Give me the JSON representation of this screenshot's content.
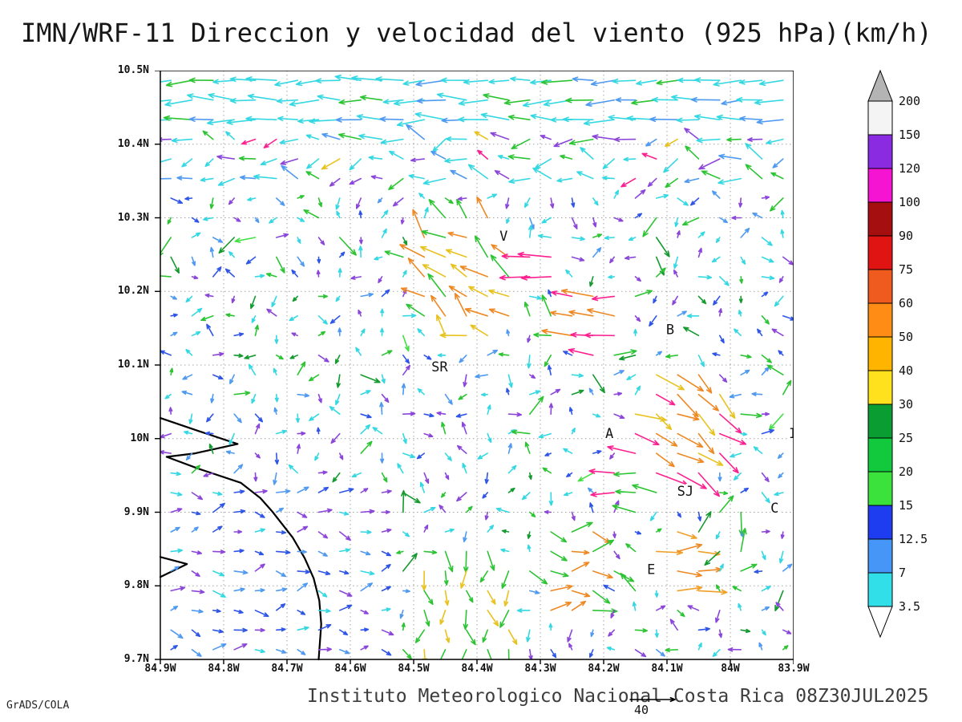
{
  "title": "IMN/WRF-11 Direccion y velocidad del viento (925 hPa)(km/h)",
  "footer": {
    "caption": "Instituto Meteorologico Nacional Costa Rica 08Z30JUL2025",
    "credit": "GrADS/COLA"
  },
  "chart_data": {
    "type": "vector-field-map",
    "title": "IMN/WRF-11 Direccion y velocidad del viento (925 hPa)(km/h)",
    "units": "km/h",
    "x_axis": {
      "ticks": [
        "84.9W",
        "84.8W",
        "84.7W",
        "84.6W",
        "84.5W",
        "84.4W",
        "84.3W",
        "84.2W",
        "84.1W",
        "84W",
        "83.9W"
      ]
    },
    "y_axis": {
      "ticks": [
        "10.5N",
        "10.4N",
        "10.3N",
        "10.2N",
        "10.1N",
        "10N",
        "9.9N",
        "9.8N",
        "9.7N"
      ]
    },
    "grid_style": "dotted",
    "legend": {
      "levels_top_to_bottom": [
        "200",
        "150",
        "120",
        "100",
        "90",
        "75",
        "60",
        "50",
        "40",
        "30",
        "25",
        "20",
        "15",
        "12.5",
        "7",
        "3.5"
      ],
      "box_colors_top_to_bottom": [
        "#f4f4f4",
        "#8a2be2",
        "#f414d2",
        "#a50f0f",
        "#e11414",
        "#ef5a1e",
        "#ff8c14",
        "#ffb400",
        "#ffe11e",
        "#0a9e32",
        "#12c83c",
        "#3ce23c",
        "#1e3cf0",
        "#4696f8",
        "#30dfe8"
      ],
      "top_triangle_color": "#b4b4b4",
      "bottom_triangle_color": "#ffffff"
    },
    "reference_vector": {
      "label": "40",
      "value": 40
    },
    "stations": [
      {
        "label": "V",
        "fx": 0.542,
        "fy": 0.282
      },
      {
        "label": "B",
        "fx": 0.805,
        "fy": 0.441
      },
      {
        "label": "SR",
        "fx": 0.441,
        "fy": 0.504
      },
      {
        "label": "A",
        "fx": 0.709,
        "fy": 0.617
      },
      {
        "label": "I",
        "fx": 0.999,
        "fy": 0.617
      },
      {
        "label": "SJ",
        "fx": 0.829,
        "fy": 0.715
      },
      {
        "label": "C",
        "fx": 0.97,
        "fy": 0.744
      },
      {
        "label": "E",
        "fx": 0.775,
        "fy": 0.848
      }
    ],
    "coastline": {
      "main": [
        [
          0,
          0.59
        ],
        [
          0.06,
          0.612
        ],
        [
          0.122,
          0.634
        ],
        [
          0.055,
          0.65
        ],
        [
          0.01,
          0.656
        ],
        [
          0.06,
          0.676
        ],
        [
          0.127,
          0.7
        ],
        [
          0.158,
          0.726
        ],
        [
          0.177,
          0.749
        ],
        [
          0.209,
          0.793
        ],
        [
          0.228,
          0.828
        ],
        [
          0.242,
          0.862
        ],
        [
          0.251,
          0.9
        ],
        [
          0.254,
          0.94
        ],
        [
          0.25,
          1.0
        ]
      ],
      "spike": [
        [
          0,
          0.826
        ],
        [
          0.042,
          0.838
        ],
        [
          0,
          0.86
        ]
      ]
    },
    "field": {
      "seed": 20250730,
      "nx": 30,
      "ny": 30,
      "palette": {
        "cyan": "#35d8e2",
        "sky": "#4f9af0",
        "blue": "#2f55e6",
        "purple": "#8b46d9",
        "green": "#2cc433",
        "dgreen": "#149a2e",
        "lgreen": "#45e045",
        "yellow": "#e8c21e",
        "amber": "#f0a028",
        "orange": "#ee8822",
        "magenta": "#fb2090"
      },
      "green_scatter": 0.12,
      "scatter": {
        "angle": [
          0,
          360
        ],
        "len": [
          18,
          30
        ],
        "colors": {
          "green": 0.6,
          "dgreen": 0.25,
          "lgreen": 0.15
        }
      },
      "default": {
        "angle": [
          0,
          360
        ],
        "len": [
          7,
          16
        ],
        "colors": {
          "cyan": 0.34,
          "sky": 0.17,
          "blue": 0.12,
          "purple": 0.23,
          "green": 0.1,
          "dgreen": 0.04
        }
      },
      "zones": [
        {
          "lat_min": 10.425,
          "angle": [
            168,
            192
          ],
          "len": [
            24,
            38
          ],
          "colors": {
            "cyan": 0.72,
            "sky": 0.18,
            "green": 0.1
          }
        },
        {
          "lat_min": 10.327,
          "lat_max": 10.425,
          "angle": [
            135,
            225
          ],
          "len": [
            13,
            30
          ],
          "colors": {
            "cyan": 0.38,
            "sky": 0.12,
            "purple": 0.2,
            "green": 0.18,
            "yellow": 0.07,
            "magenta": 0.05
          }
        },
        {
          "lon_max": -84.55,
          "lat_max": 9.95,
          "angle": [
            -40,
            40
          ],
          "len": [
            9,
            18
          ],
          "colors": {
            "blue": 0.3,
            "purple": 0.28,
            "sky": 0.24,
            "cyan": 0.18
          }
        }
      ],
      "spots": [
        {
          "lon": -84.42,
          "lat": 10.22,
          "r": 0.09,
          "angle": [
            180,
            250
          ],
          "len": [
            22,
            38
          ],
          "colors": {
            "yellow": 0.4,
            "orange": 0.35,
            "green": 0.25
          }
        },
        {
          "lon": -84.3,
          "lat": 10.225,
          "r": 0.03,
          "angle": [
            176,
            186
          ],
          "len": [
            32,
            42
          ],
          "colors": {
            "magenta": 1
          }
        },
        {
          "lon": -84.22,
          "lat": 10.16,
          "r": 0.05,
          "angle": [
            172,
            196
          ],
          "len": [
            26,
            40
          ],
          "colors": {
            "magenta": 0.55,
            "orange": 0.45
          }
        },
        {
          "lon": -84.08,
          "lat": 10.02,
          "r": 0.08,
          "angle": [
            10,
            60
          ],
          "len": [
            26,
            42
          ],
          "colors": {
            "orange": 0.4,
            "yellow": 0.35,
            "magenta": 0.25
          }
        },
        {
          "lon": -84.15,
          "lat": 9.945,
          "r": 0.045,
          "angle": [
            172,
            200
          ],
          "len": [
            24,
            36
          ],
          "colors": {
            "magenta": 0.45,
            "green": 0.55
          }
        },
        {
          "lon": -84.25,
          "lat": 9.82,
          "r": 0.07,
          "angle": [
            -35,
            40
          ],
          "len": [
            20,
            32
          ],
          "colors": {
            "orange": 0.5,
            "green": 0.5
          }
        },
        {
          "lon": -84.08,
          "lat": 9.83,
          "r": 0.05,
          "angle": [
            -20,
            20
          ],
          "len": [
            24,
            36
          ],
          "colors": {
            "orange": 0.6,
            "amber": 0.4
          }
        },
        {
          "lon": -84.42,
          "lat": 9.765,
          "r": 0.09,
          "angle": [
            55,
            125
          ],
          "len": [
            16,
            28
          ],
          "colors": {
            "green": 0.7,
            "yellow": 0.3
          }
        }
      ]
    }
  }
}
